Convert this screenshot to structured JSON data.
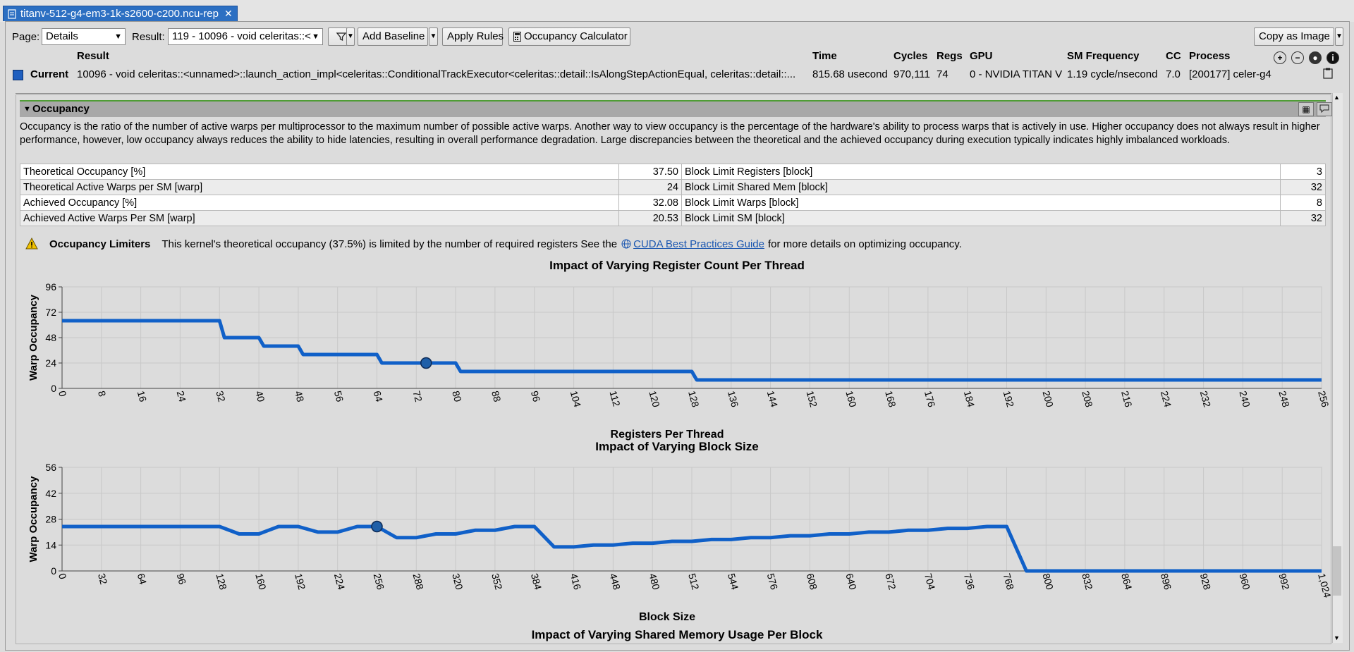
{
  "tab": {
    "title": "titanv-512-g4-em3-1k-s2600-c200.ncu-rep",
    "close": "✕"
  },
  "toolbar": {
    "page_label": "Page:",
    "page_value": "Details",
    "result_label": "Result:",
    "result_value": "119 - 10096 - void celeritas::<",
    "filter_icon": "funnel-icon",
    "add_baseline": "Add Baseline",
    "apply_rules": "Apply Rules",
    "occupancy_calculator": "Occupancy Calculator",
    "copy_as_image": "Copy as Image"
  },
  "results_header": {
    "columns": [
      "Result",
      "Time",
      "Cycles",
      "Regs",
      "GPU",
      "SM Frequency",
      "CC",
      "Process"
    ],
    "row": {
      "name": "Current",
      "result": "10096 - void celeritas::<unnamed>::launch_action_impl<celeritas::ConditionalTrackExecutor<celeritas::detail::IsAlongStepActionEqual, celeritas::detail::...",
      "time": "815.68 usecond",
      "cycles": "970,111",
      "regs": "74",
      "gpu": "0 - NVIDIA TITAN V",
      "sm_frequency": "1.19 cycle/nsecond",
      "cc": "7.0",
      "process": "[200177] celer-g4"
    },
    "swatch_color": "#1f5fbf"
  },
  "section": {
    "title": "Occupancy",
    "description": "Occupancy is the ratio of the number of active warps per multiprocessor to the maximum number of possible active warps. Another way to view occupancy is the percentage of the hardware's ability to process warps that is actively in use. Higher occupancy does not always result in higher performance, however, low occupancy always reduces the ability to hide latencies, resulting in overall performance degradation. Large discrepancies between the theoretical and the achieved occupancy during execution typically indicates highly imbalanced workloads.",
    "metrics": [
      {
        "l": "Theoretical Occupancy [%]",
        "lv": "37.50",
        "r": "Block Limit Registers [block]",
        "rv": "3"
      },
      {
        "l": "Theoretical Active Warps per SM [warp]",
        "lv": "24",
        "r": "Block Limit Shared Mem [block]",
        "rv": "32"
      },
      {
        "l": "Achieved Occupancy [%]",
        "lv": "32.08",
        "r": "Block Limit Warps [block]",
        "rv": "8"
      },
      {
        "l": "Achieved Active Warps Per SM [warp]",
        "lv": "20.53",
        "r": "Block Limit SM [block]",
        "rv": "32"
      }
    ],
    "limiter": {
      "title": "Occupancy Limiters",
      "text_before": "This kernel's theoretical occupancy (37.5%) is limited by the number of required registers See the",
      "link": "CUDA Best Practices Guide",
      "text_after": "for more details on optimizing occupancy."
    }
  },
  "colors": {
    "line": "#1060c8",
    "marker": "#1f5fa8",
    "grid": "#c8c8c8",
    "plot_bg": "#dcdcdc"
  },
  "chart_data": [
    {
      "type": "line",
      "title": "Impact of Varying Register Count Per Thread",
      "xlabel": "Registers Per Thread",
      "ylabel": "Warp Occupancy",
      "xlim": [
        0,
        256
      ],
      "ylim": [
        0,
        96
      ],
      "yticks": [
        0,
        24,
        48,
        72,
        96
      ],
      "xticks": [
        0,
        8,
        16,
        24,
        32,
        40,
        48,
        56,
        64,
        72,
        80,
        88,
        96,
        104,
        112,
        120,
        128,
        136,
        144,
        152,
        160,
        168,
        176,
        184,
        192,
        200,
        208,
        216,
        224,
        232,
        240,
        248,
        256
      ],
      "x": [
        0,
        32,
        33,
        40,
        41,
        48,
        49,
        64,
        65,
        72,
        80,
        81,
        128,
        129,
        256
      ],
      "y": [
        64,
        64,
        48,
        48,
        40,
        40,
        32,
        32,
        24,
        24,
        24,
        16,
        16,
        8,
        8
      ],
      "current_point": {
        "x": 74,
        "y": 24
      },
      "grid": true
    },
    {
      "type": "line",
      "title": "Impact of Varying Block Size",
      "xlabel": "Block Size",
      "ylabel": "Warp Occupancy",
      "xlim": [
        0,
        1024
      ],
      "ylim": [
        0,
        56
      ],
      "yticks": [
        0,
        14,
        28,
        42,
        56
      ],
      "xticks": [
        0,
        32,
        64,
        96,
        128,
        160,
        192,
        224,
        256,
        288,
        320,
        352,
        384,
        416,
        448,
        480,
        512,
        544,
        576,
        608,
        640,
        672,
        704,
        736,
        768,
        800,
        832,
        864,
        896,
        928,
        960,
        992,
        1024
      ],
      "x": [
        0,
        32,
        64,
        96,
        128,
        144,
        160,
        176,
        192,
        208,
        224,
        240,
        256,
        272,
        288,
        304,
        320,
        336,
        352,
        368,
        384,
        400,
        416,
        432,
        448,
        464,
        480,
        496,
        512,
        528,
        544,
        560,
        576,
        592,
        608,
        624,
        640,
        656,
        672,
        688,
        704,
        720,
        736,
        752,
        768,
        784,
        800,
        1024
      ],
      "y": [
        24,
        24,
        24,
        24,
        24,
        20,
        20,
        24,
        24,
        21,
        21,
        24,
        24,
        18,
        18,
        20,
        20,
        22,
        22,
        24,
        24,
        13,
        13,
        14,
        14,
        15,
        15,
        16,
        16,
        17,
        17,
        18,
        18,
        19,
        19,
        20,
        20,
        21,
        21,
        22,
        22,
        23,
        23,
        24,
        24,
        0,
        0,
        0
      ],
      "current_point": {
        "x": 256,
        "y": 24
      },
      "grid": true
    },
    {
      "type": "line",
      "title": "Impact of Varying Shared Memory Usage Per Block"
    }
  ]
}
